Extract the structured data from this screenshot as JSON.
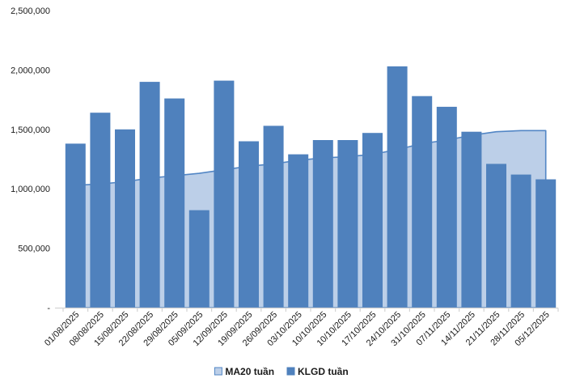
{
  "chart_data": {
    "type": "bar",
    "title": "",
    "xlabel": "",
    "ylabel": "",
    "categories": [
      "01/08/2025",
      "08/08/2025",
      "15/08/2025",
      "22/08/2025",
      "29/08/2025",
      "05/09/2025",
      "12/09/2025",
      "19/09/2025",
      "26/09/2025",
      "03/10/2025",
      "10/10/2025",
      "10/10/2025",
      "17/10/2025",
      "24/10/2025",
      "31/10/2025",
      "07/11/2025",
      "14/11/2025",
      "21/11/2025",
      "28/11/2025",
      "05/12/2025"
    ],
    "series": [
      {
        "name": "MA20 tuần",
        "type": "area",
        "fill_color": "#BCCFE8",
        "line_color": "#5286C5",
        "values": [
          1030000,
          1040000,
          1060000,
          1090000,
          1110000,
          1130000,
          1160000,
          1190000,
          1210000,
          1240000,
          1260000,
          1270000,
          1290000,
          1330000,
          1380000,
          1410000,
          1450000,
          1480000,
          1490000,
          1490000
        ]
      },
      {
        "name": "KLGD tuần",
        "type": "bar",
        "fill_color": "#4F81BD",
        "values": [
          1380000,
          1640000,
          1500000,
          1900000,
          1760000,
          820000,
          1910000,
          1400000,
          1530000,
          1290000,
          1410000,
          1410000,
          1470000,
          2030000,
          1780000,
          1690000,
          1480000,
          1210000,
          1120000,
          1080000
        ]
      }
    ],
    "ylim": [
      0,
      2500000
    ],
    "ytick_interval": 500000,
    "yticks": [
      {
        "value": 2500000,
        "label": "2,500,000"
      },
      {
        "value": 2000000,
        "label": "2,000,000"
      },
      {
        "value": 1500000,
        "label": "1,500,000"
      },
      {
        "value": 1000000,
        "label": "1,000,000"
      },
      {
        "value": 500000,
        "label": "500,000"
      },
      {
        "value": 0,
        "label": "-"
      }
    ],
    "grid": false,
    "legend_position": "bottom",
    "legend": [
      {
        "label": "MA20 tuần",
        "swatch_fill": "#BCCFE8",
        "swatch_border": "#5286C5"
      },
      {
        "label": "KLGD tuần",
        "swatch_fill": "#4F81BD",
        "swatch_border": "#4F81BD"
      }
    ],
    "colors": {
      "axis_line": "#D4D4D4",
      "tick": "#D4D4D4",
      "label_text": "#1a1a1a",
      "background": "#ffffff"
    }
  }
}
